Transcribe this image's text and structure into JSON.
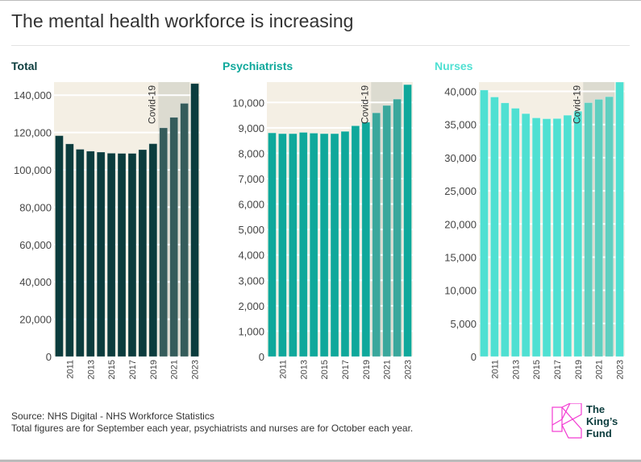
{
  "title": "The mental health workforce is increasing",
  "chart_data": [
    {
      "type": "bar",
      "title": "Total",
      "title_color": "#0b3c3d",
      "categories": [
        2010,
        2011,
        2012,
        2013,
        2014,
        2015,
        2016,
        2017,
        2018,
        2019,
        2020,
        2021,
        2022,
        2023
      ],
      "values": [
        118300,
        113900,
        111000,
        110000,
        109500,
        108900,
        108800,
        108800,
        110800,
        114000,
        122500,
        128100,
        135600,
        146200
      ],
      "yticks": [
        0,
        20000,
        40000,
        60000,
        80000,
        100000,
        120000,
        140000
      ],
      "ylim": [
        0,
        147000
      ],
      "bar_color": "#0b3c3d",
      "covid_bar_color": "#355c5b"
    },
    {
      "type": "bar",
      "title": "Psychiatrists",
      "title_color": "#0fa89b",
      "categories": [
        2010,
        2011,
        2012,
        2013,
        2014,
        2015,
        2016,
        2017,
        2018,
        2019,
        2020,
        2021,
        2022,
        2023
      ],
      "values": [
        8800,
        8770,
        8770,
        8820,
        8790,
        8770,
        8770,
        8860,
        9080,
        9220,
        9590,
        9880,
        10130,
        10700
      ],
      "yticks": [
        0,
        1000,
        2000,
        3000,
        4000,
        5000,
        6000,
        7000,
        8000,
        9000,
        10000
      ],
      "ylim": [
        0,
        10800
      ],
      "bar_color": "#0fa89b",
      "covid_bar_color": "#3aa79c"
    },
    {
      "type": "bar",
      "title": "Nurses",
      "title_color": "#4fe0d2",
      "categories": [
        2010,
        2011,
        2012,
        2013,
        2014,
        2015,
        2016,
        2017,
        2018,
        2019,
        2020,
        2021,
        2022,
        2023
      ],
      "values": [
        40200,
        39150,
        38260,
        37450,
        36640,
        36000,
        35870,
        35900,
        36400,
        37000,
        38300,
        38800,
        39200,
        41400
      ],
      "yticks": [
        0,
        5000,
        10000,
        15000,
        20000,
        25000,
        30000,
        35000,
        40000
      ],
      "ylim": [
        0,
        41400
      ],
      "bar_color": "#4fe0d2",
      "covid_bar_color": "#5fcfc0"
    }
  ],
  "annotation": "Covid-19",
  "covid_years": [
    2020,
    2021,
    2022
  ],
  "xtick_labels": [
    "2011",
    "2013",
    "2015",
    "2017",
    "2019",
    "2021",
    "2023"
  ],
  "source_line1": "Source: NHS Digital - NHS Workforce Statistics",
  "source_line2": "Total figures are for September each year, psychiatrists and nurses are for October each year.",
  "logo_text": "The King's Fund",
  "colors": {
    "plot_bg": "#f4efe4",
    "covid_bg": "#dcdbd0",
    "logo_pink": "#f23bd2",
    "logo_text": "#0b3c3d"
  }
}
